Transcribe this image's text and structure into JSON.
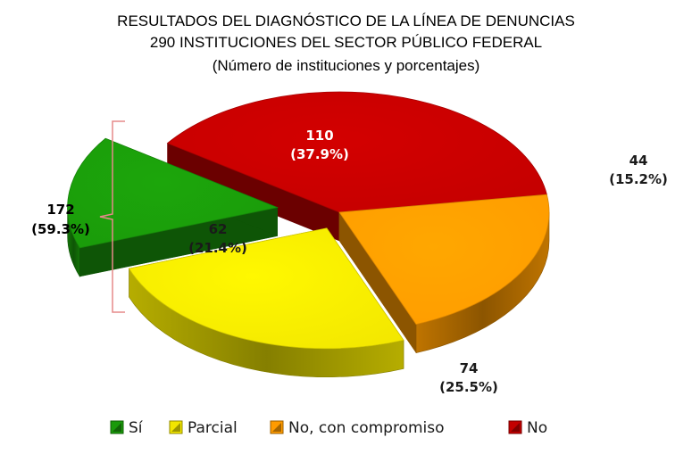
{
  "chart_data": {
    "type": "pie",
    "title": "RESULTADOS DEL DIAGNÓSTICO DE LA LÍNEA DE DENUNCIAS",
    "subtitle": "290 INSTITUCIONES DEL SECTOR PÚBLICO FEDERAL",
    "subtitle2": "(Número de instituciones y porcentajes)",
    "legend_position": "bottom",
    "slices": [
      {
        "name": "Sí",
        "value": 44,
        "label": "44",
        "pct_label": "(15.2%)",
        "color": "#1a9a0a"
      },
      {
        "name": "Parcial",
        "value": 74,
        "label": "74",
        "pct_label": "(25.5%)",
        "color": "#f2e600"
      },
      {
        "name": "No, con compromiso",
        "value": 62,
        "label": "62",
        "pct_label": "(21.4%)",
        "color": "#ff9b00"
      },
      {
        "name": "No",
        "value": 110,
        "label": "110",
        "pct_label": "(37.9%)",
        "color": "#c30000"
      }
    ],
    "group_annotation": {
      "value": "172",
      "pct_label": "(59.3%)"
    }
  }
}
